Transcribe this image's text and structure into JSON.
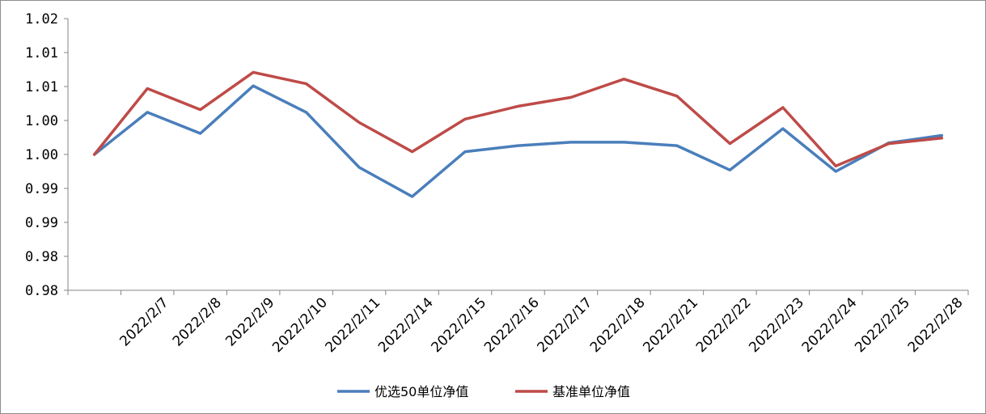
{
  "chart_data": {
    "type": "line",
    "title": "",
    "xlabel": "",
    "ylabel": "",
    "categories": [
      "",
      "2022/2/7",
      "2022/2/8",
      "2022/2/9",
      "2022/2/10",
      "2022/2/11",
      "2022/2/14",
      "2022/2/15",
      "2022/2/16",
      "2022/2/17",
      "2022/2/18",
      "2022/2/21",
      "2022/2/22",
      "2022/2/23",
      "2022/2/24",
      "2022/2/25",
      "2022/2/28"
    ],
    "y_tick_labels": [
      "0.98",
      "0.98",
      "0.99",
      "0.99",
      "1.00",
      "1.00",
      "1.01",
      "1.01",
      "1.02"
    ],
    "ylim": [
      0.98,
      1.02
    ],
    "grid": false,
    "legend_position": "bottom",
    "series": [
      {
        "name": "优选50单位净值",
        "color": "#4a7ebb",
        "values": [
          1.0,
          1.0062,
          1.0031,
          1.0101,
          1.0062,
          0.9981,
          0.9938,
          1.0004,
          1.0013,
          1.0018,
          1.0018,
          1.0013,
          0.9977,
          1.0038,
          0.9975,
          1.0017,
          1.0028
        ]
      },
      {
        "name": "基准单位净值",
        "color": "#be4b48",
        "values": [
          1.0,
          1.0097,
          1.0066,
          1.0121,
          1.0104,
          1.0047,
          1.0004,
          1.0052,
          1.0071,
          1.0084,
          1.0111,
          1.0086,
          1.0016,
          1.0069,
          0.9983,
          1.0016,
          1.0024
        ]
      }
    ]
  }
}
